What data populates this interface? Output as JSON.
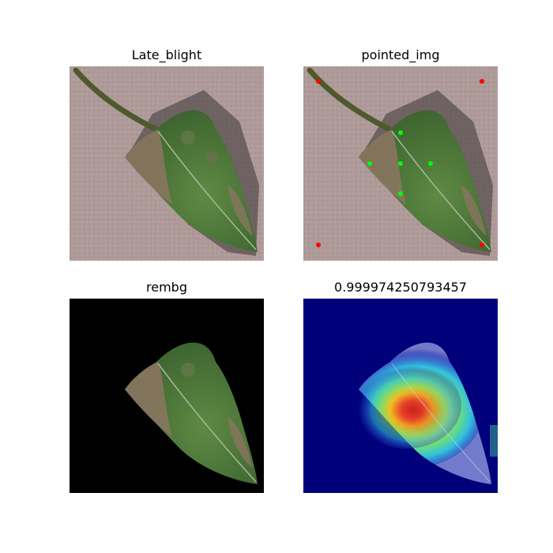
{
  "panels": [
    {
      "title": "Late_blight",
      "kind": "original-leaf-photo"
    },
    {
      "title": "pointed_img",
      "kind": "leaf-photo-with-prompt-points",
      "points": {
        "background_color": "#ff0000",
        "foreground_color": "#00ff00",
        "background_count": 4,
        "foreground_count": 5
      }
    },
    {
      "title": "rembg",
      "kind": "background-removed-leaf"
    },
    {
      "title": "0.999974250793457",
      "kind": "heatmap-overlay"
    }
  ],
  "colors": {
    "background_surface": "#b09a99",
    "leaf_green": "#4f7a3a",
    "lesion_brown": "#8a7560",
    "heatmap_base": "#00007a"
  }
}
